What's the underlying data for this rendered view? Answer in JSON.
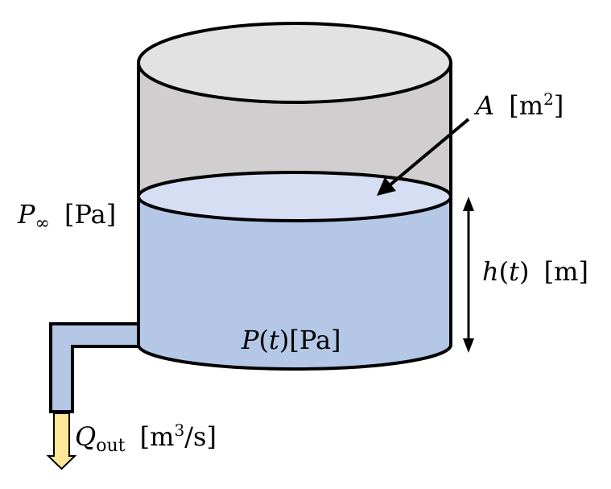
{
  "labels": {
    "area": {
      "symbol": "A",
      "unit_open": "[m",
      "unit_exp": "2",
      "unit_close": "]"
    },
    "ambient_pressure": {
      "symbol": "P",
      "subscript": "∞",
      "unit": "[Pa]"
    },
    "height": {
      "symbol": "h",
      "arg_open": "(",
      "arg": "t",
      "arg_close": ")",
      "unit": "[m]"
    },
    "pressure": {
      "symbol": "P",
      "arg_open": "(",
      "arg": "t",
      "arg_close": ")",
      "unit": "[Pa]"
    },
    "outflow": {
      "symbol": "Q",
      "subscript": "out",
      "unit_open": "[m",
      "unit_exp": "3",
      "unit_close": "/s]"
    }
  },
  "colors": {
    "tank_wall": "#d0cece",
    "tank_top": "#e2e2e2",
    "liquid": "#b4c7e7",
    "liquid_surface": "#d5def3",
    "outflow_arrow": "#ffe699",
    "outline": "#000000"
  }
}
